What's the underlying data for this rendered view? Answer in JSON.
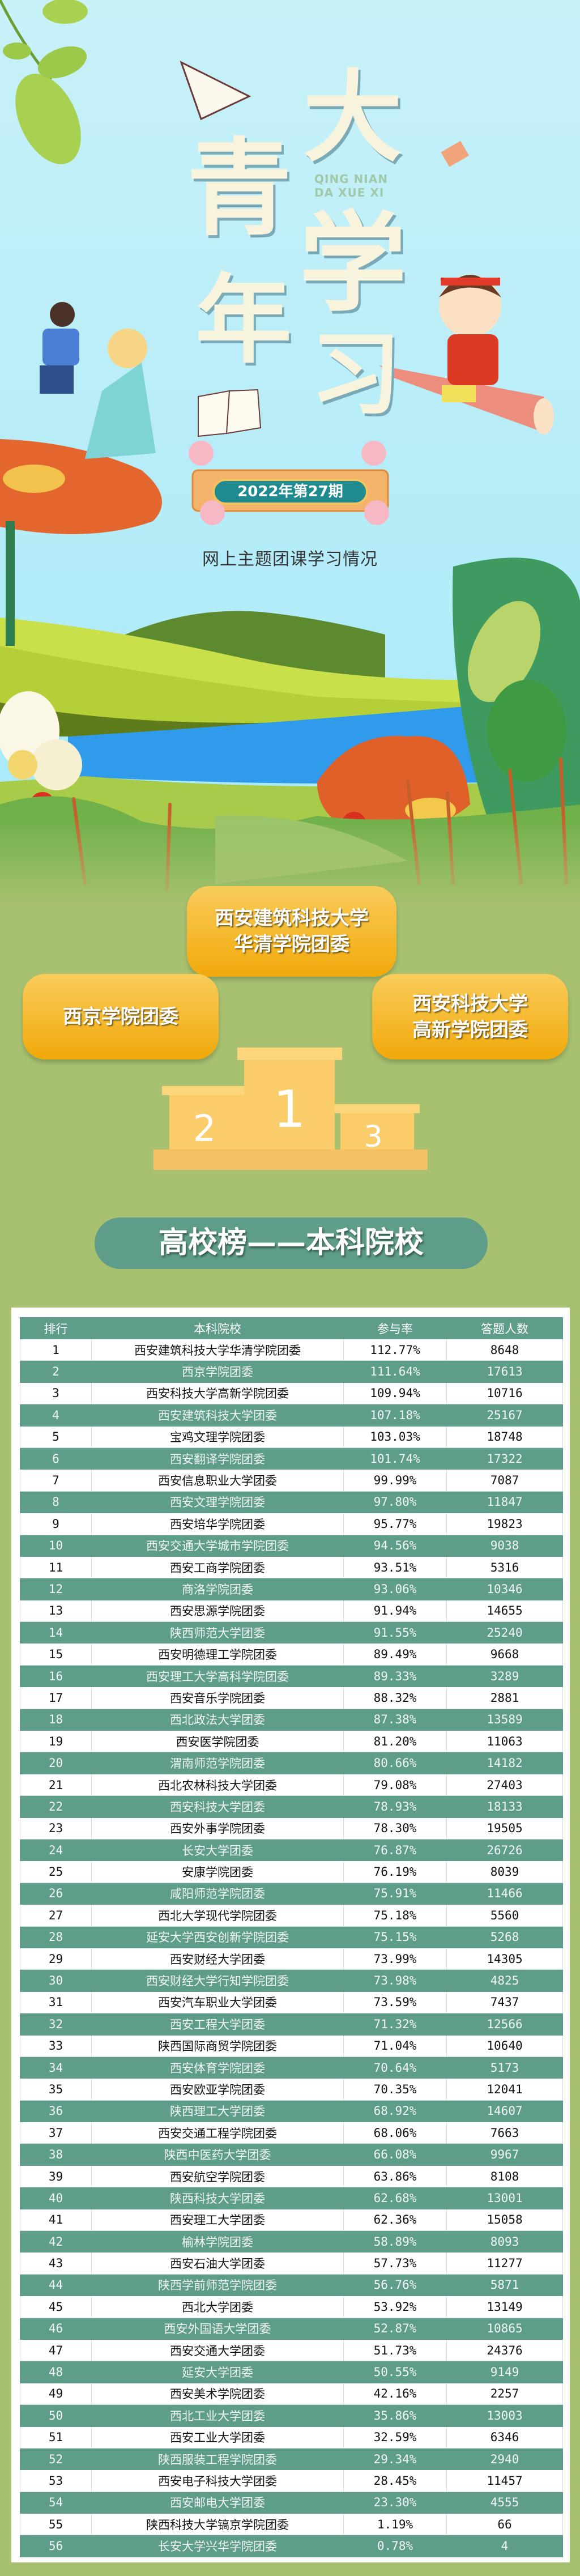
{
  "poster": {
    "title_chars": [
      "青",
      "年",
      "大",
      "学",
      "习"
    ],
    "pinyin_line1": "QING NIAN",
    "pinyin_line2": "DA XUE XI",
    "issue": "2022年第27期",
    "subtitle": "网上主题团课学习情况"
  },
  "colors": {
    "sky": "#aeeaf7",
    "background_green": "#a8c170",
    "teal": "#5e9d89",
    "gold": "#f4b524",
    "podium": "#fbcd6a"
  },
  "podium": {
    "first": {
      "line1": "西安建筑科技大学",
      "line2": "华清学院团委",
      "rank": "1"
    },
    "second": {
      "line1": "西京学院团委",
      "rank": "2"
    },
    "third": {
      "line1": "西安科技大学",
      "line2": "高新学院团委",
      "rank": "3"
    }
  },
  "section_banner": "高校榜——本科院校",
  "table": {
    "headers": [
      "排行",
      "本科院校",
      "参与率",
      "答题人数"
    ],
    "rows": [
      [
        "1",
        "西安建筑科技大学华清学院团委",
        "112.77%",
        "8648"
      ],
      [
        "2",
        "西京学院团委",
        "111.64%",
        "17613"
      ],
      [
        "3",
        "西安科技大学高新学院团委",
        "109.94%",
        "10716"
      ],
      [
        "4",
        "西安建筑科技大学团委",
        "107.18%",
        "25167"
      ],
      [
        "5",
        "宝鸡文理学院团委",
        "103.03%",
        "18748"
      ],
      [
        "6",
        "西安翻译学院团委",
        "101.74%",
        "17322"
      ],
      [
        "7",
        "西安信息职业大学团委",
        "99.99%",
        "7087"
      ],
      [
        "8",
        "西安文理学院团委",
        "97.80%",
        "11847"
      ],
      [
        "9",
        "西安培华学院团委",
        "95.77%",
        "19823"
      ],
      [
        "10",
        "西安交通大学城市学院团委",
        "94.56%",
        "9038"
      ],
      [
        "11",
        "西安工商学院团委",
        "93.51%",
        "5316"
      ],
      [
        "12",
        "商洛学院团委",
        "93.06%",
        "10346"
      ],
      [
        "13",
        "西安思源学院团委",
        "91.94%",
        "14655"
      ],
      [
        "14",
        "陕西师范大学团委",
        "91.55%",
        "25240"
      ],
      [
        "15",
        "西安明德理工学院团委",
        "89.49%",
        "9668"
      ],
      [
        "16",
        "西安理工大学高科学院团委",
        "89.33%",
        "3289"
      ],
      [
        "17",
        "西安音乐学院团委",
        "88.32%",
        "2881"
      ],
      [
        "18",
        "西北政法大学团委",
        "87.38%",
        "13589"
      ],
      [
        "19",
        "西安医学院团委",
        "81.20%",
        "11063"
      ],
      [
        "20",
        "渭南师范学院团委",
        "80.66%",
        "14182"
      ],
      [
        "21",
        "西北农林科技大学团委",
        "79.08%",
        "27403"
      ],
      [
        "22",
        "西安科技大学团委",
        "78.93%",
        "18133"
      ],
      [
        "23",
        "西安外事学院团委",
        "78.30%",
        "19505"
      ],
      [
        "24",
        "长安大学团委",
        "76.87%",
        "26726"
      ],
      [
        "25",
        "安康学院团委",
        "76.19%",
        "8039"
      ],
      [
        "26",
        "咸阳师范学院团委",
        "75.91%",
        "11466"
      ],
      [
        "27",
        "西北大学现代学院团委",
        "75.18%",
        "5560"
      ],
      [
        "28",
        "延安大学西安创新学院团委",
        "75.15%",
        "5268"
      ],
      [
        "29",
        "西安财经大学团委",
        "73.99%",
        "14305"
      ],
      [
        "30",
        "西安财经大学行知学院团委",
        "73.98%",
        "4825"
      ],
      [
        "31",
        "西安汽车职业大学团委",
        "73.59%",
        "7437"
      ],
      [
        "32",
        "西安工程大学团委",
        "71.32%",
        "12566"
      ],
      [
        "33",
        "陕西国际商贸学院团委",
        "71.04%",
        "10640"
      ],
      [
        "34",
        "西安体育学院团委",
        "70.64%",
        "5173"
      ],
      [
        "35",
        "西安欧亚学院团委",
        "70.35%",
        "12041"
      ],
      [
        "36",
        "陕西理工大学团委",
        "68.92%",
        "14607"
      ],
      [
        "37",
        "西安交通工程学院团委",
        "68.06%",
        "7663"
      ],
      [
        "38",
        "陕西中医药大学团委",
        "66.08%",
        "9967"
      ],
      [
        "39",
        "西安航空学院团委",
        "63.86%",
        "8108"
      ],
      [
        "40",
        "陕西科技大学团委",
        "62.68%",
        "13001"
      ],
      [
        "41",
        "西安理工大学团委",
        "62.36%",
        "15058"
      ],
      [
        "42",
        "榆林学院团委",
        "58.89%",
        "8093"
      ],
      [
        "43",
        "西安石油大学团委",
        "57.73%",
        "11277"
      ],
      [
        "44",
        "陕西学前师范学院团委",
        "56.76%",
        "5871"
      ],
      [
        "45",
        "西北大学团委",
        "53.92%",
        "13149"
      ],
      [
        "46",
        "西安外国语大学团委",
        "52.87%",
        "10865"
      ],
      [
        "47",
        "西安交通大学团委",
        "51.73%",
        "24376"
      ],
      [
        "48",
        "延安大学团委",
        "50.55%",
        "9149"
      ],
      [
        "49",
        "西安美术学院团委",
        "42.16%",
        "2257"
      ],
      [
        "50",
        "西北工业大学团委",
        "35.86%",
        "13003"
      ],
      [
        "51",
        "西安工业大学团委",
        "32.59%",
        "6346"
      ],
      [
        "52",
        "陕西服装工程学院团委",
        "29.34%",
        "2940"
      ],
      [
        "53",
        "西安电子科技大学团委",
        "28.45%",
        "11457"
      ],
      [
        "54",
        "西安邮电大学团委",
        "23.30%",
        "4555"
      ],
      [
        "55",
        "陕西科技大学镐京学院团委",
        "1.19%",
        "66"
      ],
      [
        "56",
        "长安大学兴华学院团委",
        "0.78%",
        "4"
      ]
    ]
  }
}
